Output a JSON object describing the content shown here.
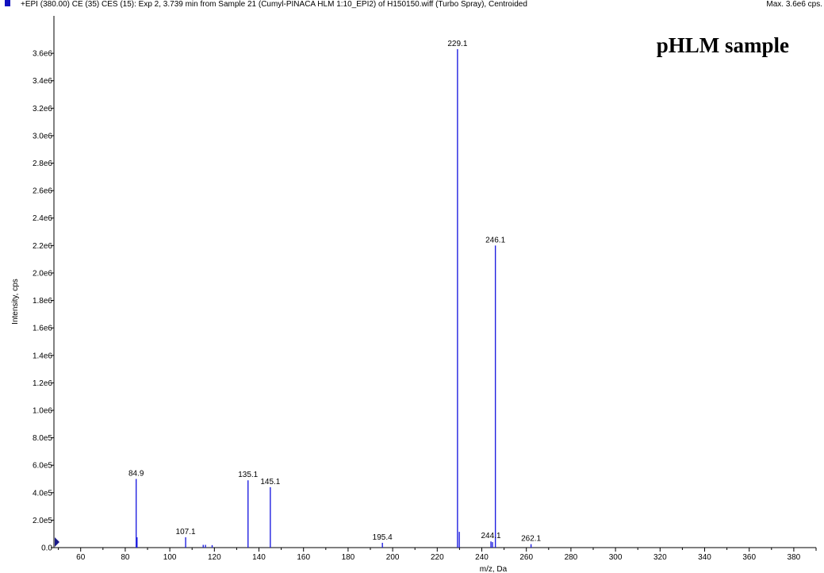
{
  "header": {
    "description": "+EPI (380.00) CE (35) CES (15): Exp 2, 3.739 min from Sample 21 (Cumyl-PINACA HLM 1:10_EPI2) of H150150.wiff (Turbo Spray), Centroided",
    "max_label": "Max. 3.6e6 cps."
  },
  "sample_label": "pHLM sample",
  "colors": {
    "line": "#2020e0",
    "marker": "#1010c0",
    "axis": "#000000"
  },
  "chart_data": {
    "type": "bar",
    "title": "",
    "xlabel": "m/z, Da",
    "ylabel": "Intensity, cps",
    "xlim": [
      48,
      390
    ],
    "ylim": [
      0,
      3670000.0
    ],
    "x_ticks": [
      60,
      80,
      100,
      120,
      140,
      160,
      180,
      200,
      220,
      240,
      260,
      280,
      300,
      320,
      340,
      360,
      380
    ],
    "y_ticks": [
      {
        "value": 0,
        "label": "0.0"
      },
      {
        "value": 200000,
        "label": "2.0e5"
      },
      {
        "value": 400000,
        "label": "4.0e5"
      },
      {
        "value": 600000,
        "label": "6.0e5"
      },
      {
        "value": 800000,
        "label": "8.0e5"
      },
      {
        "value": 1000000,
        "label": "1.0e6"
      },
      {
        "value": 1200000,
        "label": "1.2e6"
      },
      {
        "value": 1400000,
        "label": "1.4e6"
      },
      {
        "value": 1600000,
        "label": "1.6e6"
      },
      {
        "value": 1800000,
        "label": "1.8e6"
      },
      {
        "value": 2000000,
        "label": "2.0e6"
      },
      {
        "value": 2200000,
        "label": "2.2e6"
      },
      {
        "value": 2400000,
        "label": "2.4e6"
      },
      {
        "value": 2600000,
        "label": "2.6e6"
      },
      {
        "value": 2800000,
        "label": "2.8e6"
      },
      {
        "value": 3000000,
        "label": "3.0e6"
      },
      {
        "value": 3200000,
        "label": "3.2e6"
      },
      {
        "value": 3400000,
        "label": "3.4e6"
      },
      {
        "value": 3600000,
        "label": "3.6e6"
      }
    ],
    "peaks": [
      {
        "mz": 84.9,
        "intensity": 500000,
        "label": "84.9"
      },
      {
        "mz": 85.3,
        "intensity": 75000,
        "label": ""
      },
      {
        "mz": 107.1,
        "intensity": 75000,
        "label": "107.1"
      },
      {
        "mz": 115.0,
        "intensity": 20000,
        "label": ""
      },
      {
        "mz": 116.0,
        "intensity": 20000,
        "label": ""
      },
      {
        "mz": 119.0,
        "intensity": 18000,
        "label": ""
      },
      {
        "mz": 135.1,
        "intensity": 490000,
        "label": "135.1"
      },
      {
        "mz": 145.1,
        "intensity": 440000,
        "label": "145.1"
      },
      {
        "mz": 195.4,
        "intensity": 35000,
        "label": "195.4"
      },
      {
        "mz": 229.1,
        "intensity": 3630000,
        "label": "229.1"
      },
      {
        "mz": 229.9,
        "intensity": 115000,
        "label": ""
      },
      {
        "mz": 244.1,
        "intensity": 45000,
        "label": "244.1"
      },
      {
        "mz": 244.8,
        "intensity": 40000,
        "label": ""
      },
      {
        "mz": 246.1,
        "intensity": 2200000,
        "label": "246.1"
      },
      {
        "mz": 262.1,
        "intensity": 25000,
        "label": "262.1"
      }
    ]
  }
}
